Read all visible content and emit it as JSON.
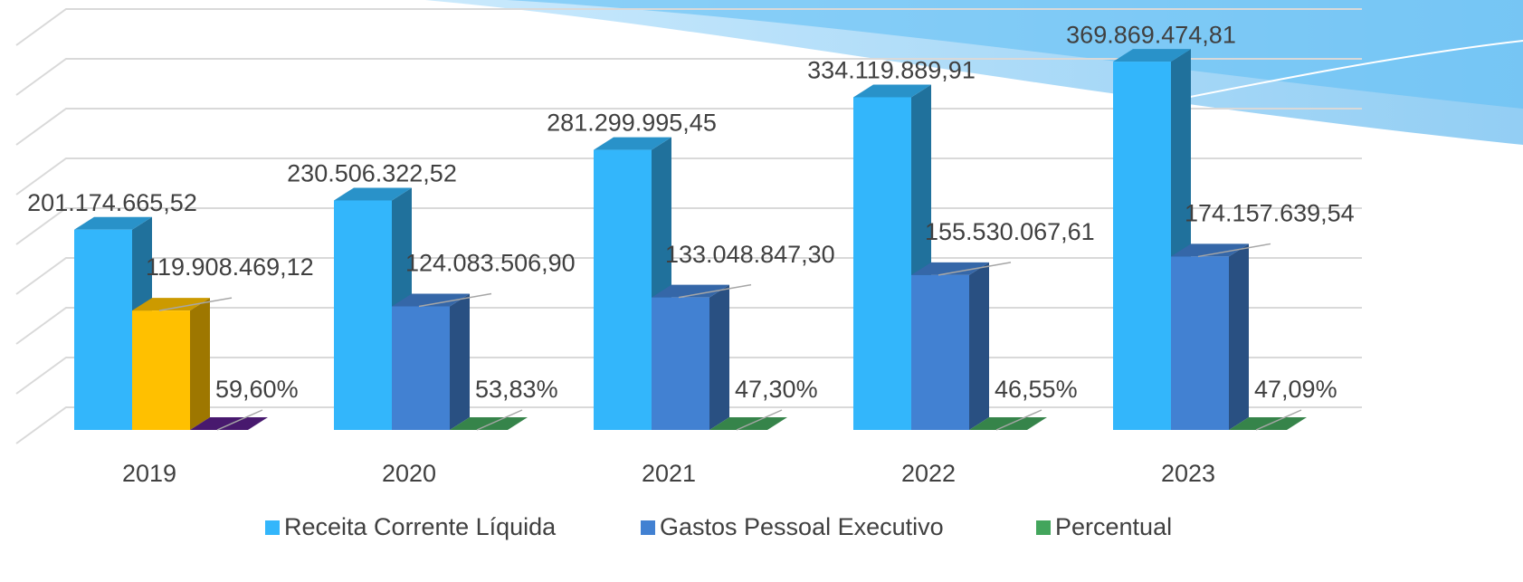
{
  "chart_data": {
    "type": "bar3d",
    "categories": [
      "2019",
      "2020",
      "2021",
      "2022",
      "2023"
    ],
    "series": [
      {
        "name": "Receita Corrente Líquida",
        "color": "#33b6fb",
        "values": [
          201174665.52,
          230506322.52,
          281299995.45,
          334119889.91,
          369869474.81
        ],
        "value_labels": [
          "201.174.665,52",
          "230.506.322,52",
          "281.299.995,45",
          "334.119.889,91",
          "369.869.474,81"
        ]
      },
      {
        "name": "Gastos Pessoal Executivo",
        "color": "#4281d2",
        "point_colors": [
          "#ffc000",
          "#4281d2",
          "#4281d2",
          "#4281d2",
          "#4281d2"
        ],
        "values": [
          119908469.12,
          124083506.9,
          133048847.3,
          155530067.61,
          174157639.54
        ],
        "value_labels": [
          "119.908.469,12",
          "124.083.506,90",
          "133.048.847,30",
          "155.530.067,61",
          "174.157.639,54"
        ]
      },
      {
        "name": "Percentual",
        "color": "#43a55c",
        "point_colors": [
          "#5a1f8a",
          "#43a55c",
          "#43a55c",
          "#43a55c",
          "#43a55c"
        ],
        "values": [
          59.6,
          53.83,
          47.3,
          46.55,
          47.09
        ],
        "value_labels": [
          "59,60%",
          "53,83%",
          "47,30%",
          "46,55%",
          "47,09%"
        ]
      }
    ],
    "ylim": [
      0,
      400000000
    ],
    "yticks": [
      0,
      50000000,
      100000000,
      150000000,
      200000000,
      250000000,
      300000000,
      350000000,
      400000000
    ],
    "grid": true
  }
}
